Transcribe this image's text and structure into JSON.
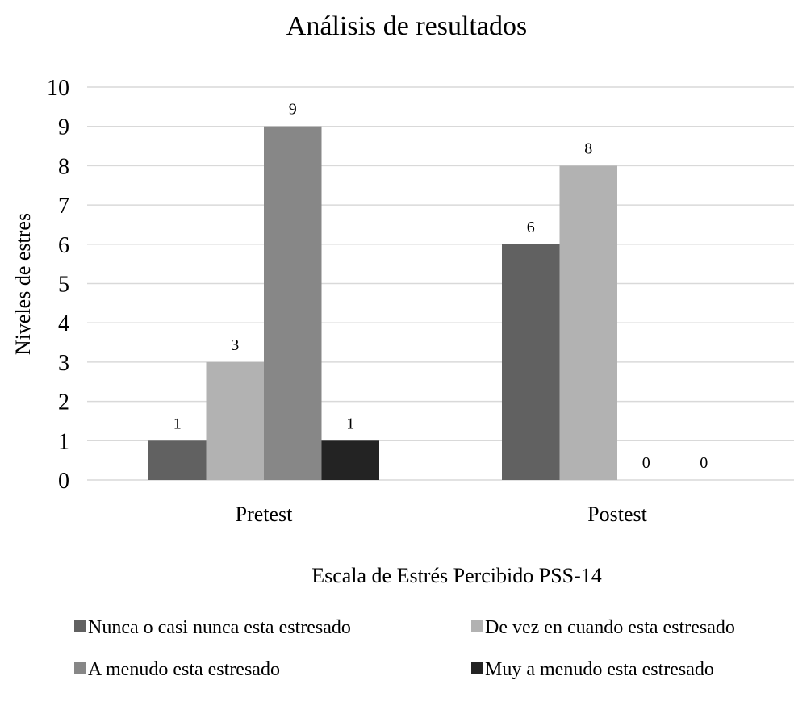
{
  "chart_data": {
    "type": "bar",
    "title": "Análisis de resultados",
    "xlabel": "Escala de Estrés Percibido  PSS-14",
    "ylabel": "Niveles de estres",
    "categories": [
      "Pretest",
      "Postest"
    ],
    "yticks": [
      "0",
      "1",
      "2",
      "3",
      "4",
      "5",
      "6",
      "7",
      "8",
      "9",
      "10"
    ],
    "ylim": [
      0,
      10
    ],
    "grid": true,
    "legend_position": "bottom",
    "series": [
      {
        "name": "Nunca o casi nunca esta estresado",
        "color": "#616161",
        "values": [
          1,
          6
        ],
        "labels": [
          "1",
          "6"
        ]
      },
      {
        "name": "De vez en cuando esta estresado",
        "color": "#b2b2b2",
        "values": [
          3,
          8
        ],
        "labels": [
          "3",
          "8"
        ]
      },
      {
        "name": "A menudo esta estresado",
        "color": "#878787",
        "values": [
          9,
          0
        ],
        "labels": [
          "9",
          "0"
        ]
      },
      {
        "name": "Muy a menudo esta estresado",
        "color": "#232323",
        "values": [
          1,
          0
        ],
        "labels": [
          "1",
          "0"
        ]
      }
    ]
  }
}
